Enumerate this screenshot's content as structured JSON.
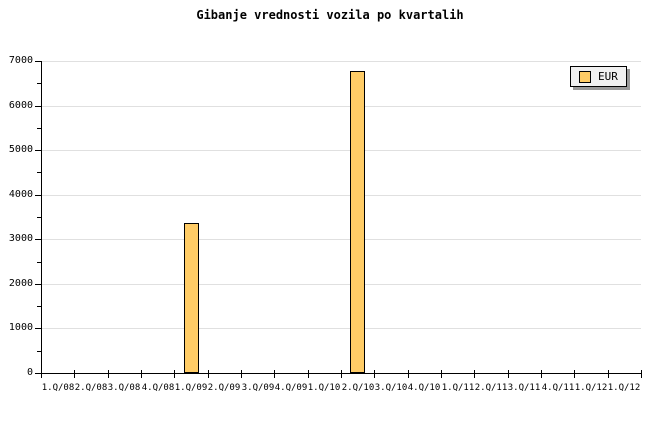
{
  "title": "Gibanje vrednosti vozila po kvartalih",
  "legend": {
    "label": "EUR",
    "swatch_color": "#ffcc66",
    "position": "top-right"
  },
  "colors": {
    "background": "#ffffff",
    "bar_fill": "#ffcc66",
    "bar_border": "#000000",
    "gridline": "#e0e0e0",
    "axis": "#000000",
    "legend_bg": "#f0f0f0",
    "legend_shadow": "#999999",
    "text": "#000000"
  },
  "chart_data": {
    "type": "bar",
    "title": "Gibanje vrednosti vozila po kvartalih",
    "xlabel": "",
    "ylabel": "",
    "categories": [
      "1.Q/08",
      "2.Q/08",
      "3.Q/08",
      "4.Q/08",
      "1.Q/09",
      "2.Q/09",
      "3.Q/09",
      "4.Q/09",
      "1.Q/10",
      "2.Q/10",
      "3.Q/10",
      "4.Q/10",
      "1.Q/11",
      "2.Q/11",
      "3.Q/11",
      "4.Q/11",
      "1.Q/12",
      "1.Q/12"
    ],
    "series": [
      {
        "name": "EUR",
        "values": [
          null,
          null,
          null,
          null,
          3370,
          null,
          null,
          null,
          null,
          6780,
          null,
          null,
          null,
          null,
          null,
          null,
          null,
          null
        ]
      }
    ],
    "ylim": [
      0,
      7000
    ],
    "yticks": [
      0,
      1000,
      2000,
      3000,
      4000,
      5000,
      6000,
      7000
    ],
    "ytick_step": 1000,
    "minor_tick_step": 500,
    "grid": "horizontal",
    "legend_position": "top-right"
  }
}
